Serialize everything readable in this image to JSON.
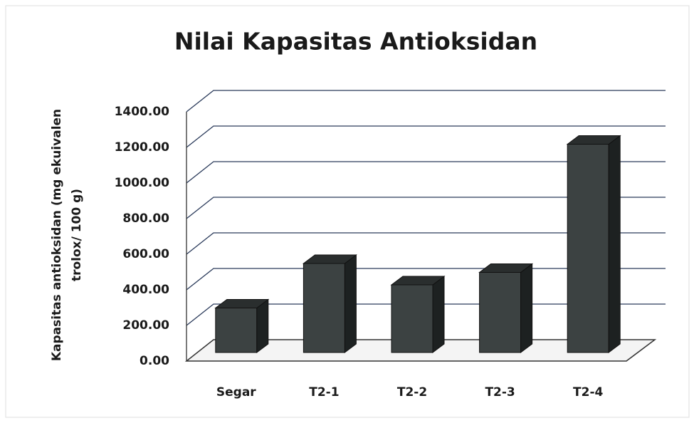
{
  "chart_data": {
    "type": "bar3d",
    "title": "Nilai Kapasitas Antioksidan",
    "ylabel": [
      "Kapasitas antioksidan (mg ekuivalen",
      "trolox/ 100 g)"
    ],
    "categories": [
      "Segar",
      "T2-1",
      "T2-2",
      "T2-3",
      "T2-4"
    ],
    "values": [
      250,
      500,
      380,
      450,
      1170
    ],
    "color": "#3c4242",
    "ylim": [
      0,
      1400
    ],
    "yticks": [
      {
        "value": 0,
        "label": "0.00"
      },
      {
        "value": 200,
        "label": "200.00"
      },
      {
        "value": 400,
        "label": "400.00"
      },
      {
        "value": 600,
        "label": "600.00"
      },
      {
        "value": 800,
        "label": "800.00"
      },
      {
        "value": 1000,
        "label": "1000.00"
      },
      {
        "value": 1200,
        "label": "1200.00"
      },
      {
        "value": 1400,
        "label": "1400.00"
      }
    ],
    "grid": true
  }
}
